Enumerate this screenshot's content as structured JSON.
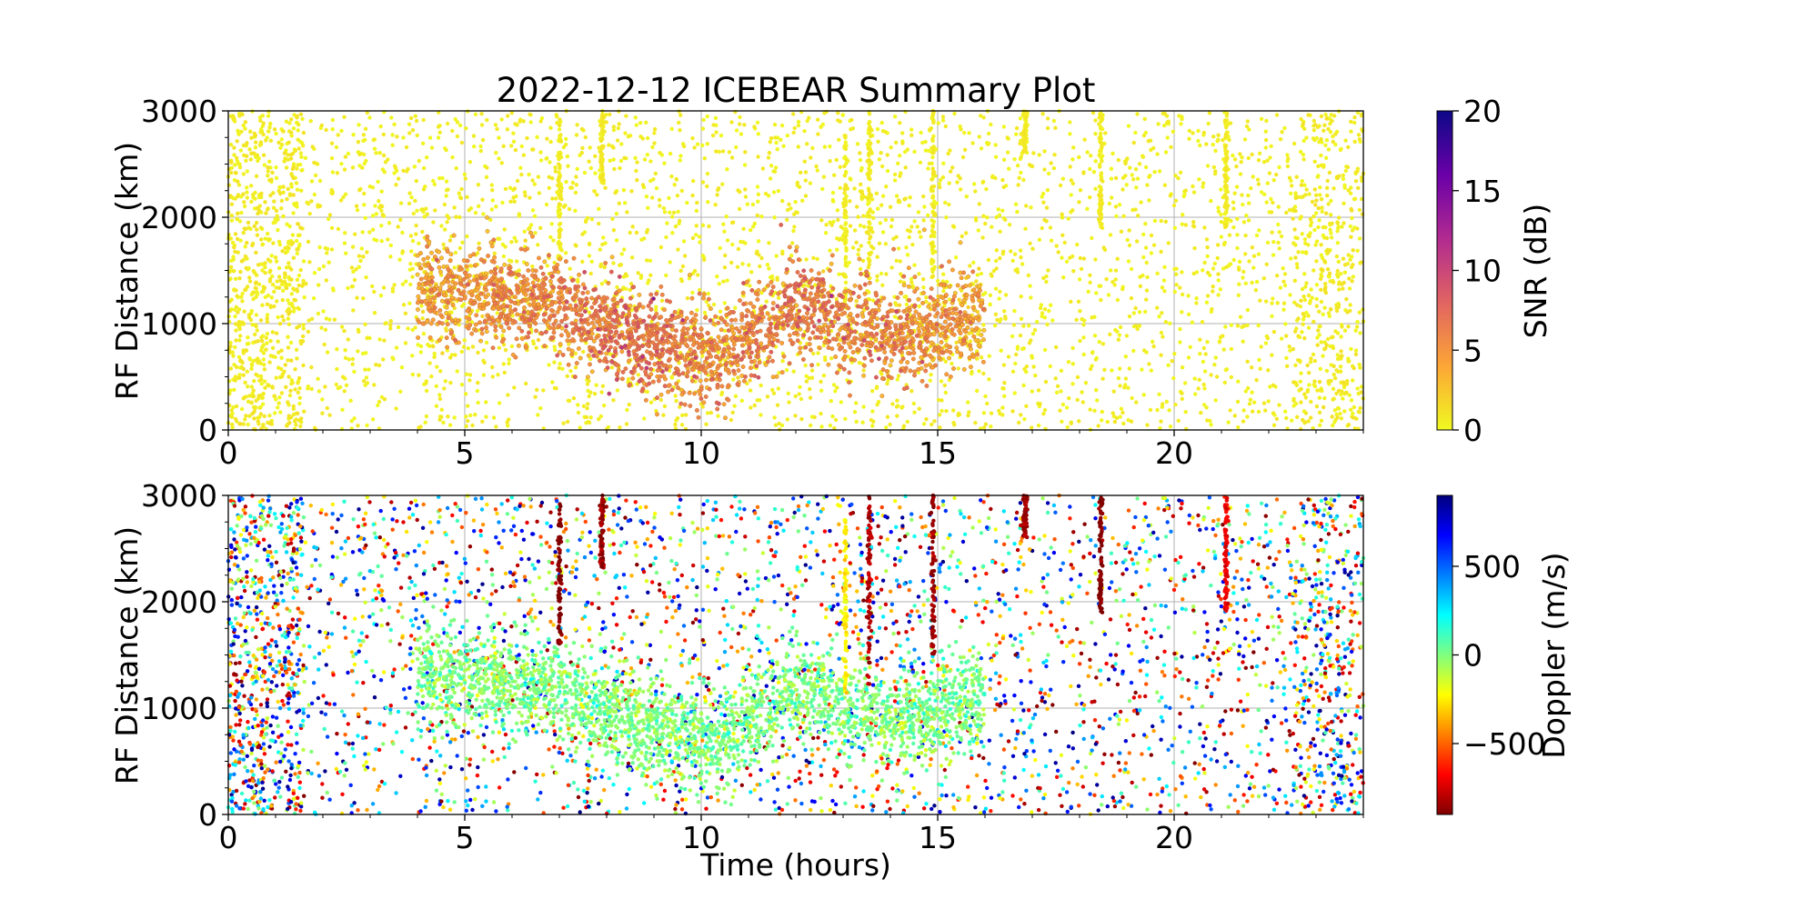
{
  "chart_data": [
    {
      "type": "scatter",
      "title": "2022-12-12 ICEBEAR Summary Plot",
      "xlabel": "",
      "ylabel": "RF Distance (km)",
      "xlim": [
        0,
        24
      ],
      "ylim": [
        0,
        3000
      ],
      "xticks": [
        0,
        5,
        10,
        15,
        20
      ],
      "yticks": [
        0,
        1000,
        2000,
        3000
      ],
      "grid": true,
      "colorbar": {
        "label": "SNR (dB)",
        "range": [
          0,
          20
        ],
        "ticks": [
          0,
          5,
          10,
          15,
          20
        ],
        "colormap": "plasma_r",
        "stops": [
          "#f0f921",
          "#fca636",
          "#e16462",
          "#b12a90",
          "#6a00a8",
          "#0d0887"
        ]
      },
      "features": {
        "background_noise_points": "uniform 0-24 h, 0-3000 km, ~0-1 dB",
        "echo_band": [
          {
            "time": 4.0,
            "distance": 1300,
            "snr": 3
          },
          {
            "time": 6.5,
            "distance": 1250,
            "snr": 5
          },
          {
            "time": 8.5,
            "distance": 850,
            "snr": 7
          },
          {
            "time": 10.5,
            "distance": 700,
            "snr": 5
          },
          {
            "time": 12.0,
            "distance": 1200,
            "snr": 6
          },
          {
            "time": 14.0,
            "distance": 850,
            "snr": 5
          },
          {
            "time": 16.0,
            "distance": 1100,
            "snr": 3
          }
        ],
        "vertical_streaks": [
          {
            "time": 7.0,
            "distance_range": [
              1600,
              3000
            ],
            "snr": 1,
            "doppler": -900
          },
          {
            "time": 7.9,
            "distance_range": [
              2300,
              3000
            ],
            "snr": 1,
            "doppler": -850
          },
          {
            "time": 13.05,
            "distance_range": [
              1100,
              2800
            ],
            "snr": 1,
            "doppler": -250
          },
          {
            "time": 13.55,
            "distance_range": [
              1200,
              3000
            ],
            "snr": 1,
            "doppler": -800
          },
          {
            "time": 14.9,
            "distance_range": [
              1500,
              3000
            ],
            "snr": 1,
            "doppler": -850
          },
          {
            "time": 16.85,
            "distance_range": [
              2600,
              3000
            ],
            "snr": 1,
            "doppler": -850
          },
          {
            "time": 18.45,
            "distance_range": [
              1900,
              3000
            ],
            "snr": 1,
            "doppler": -900
          },
          {
            "time": 21.1,
            "distance_range": [
              1900,
              3000
            ],
            "snr": 1,
            "doppler": -700
          }
        ]
      }
    },
    {
      "type": "scatter",
      "title": "",
      "xlabel": "Time (hours)",
      "ylabel": "RF Distance (km)",
      "xlim": [
        0,
        24
      ],
      "ylim": [
        0,
        3000
      ],
      "xticks": [
        0,
        5,
        10,
        15,
        20
      ],
      "yticks": [
        0,
        1000,
        2000,
        3000
      ],
      "grid": true,
      "colorbar": {
        "label": "Doppler (m/s)",
        "range": [
          -900,
          900
        ],
        "ticks": [
          -500,
          0,
          500
        ],
        "tick_labels": [
          "−500",
          "0",
          "500"
        ],
        "colormap": "jet_r",
        "stops": [
          "#7f0000",
          "#ff0000",
          "#ff7f00",
          "#ffff00",
          "#7fff7f",
          "#00ffff",
          "#007fff",
          "#0000ff",
          "#00007f"
        ]
      },
      "features": {
        "background_noise_points": "uniform 0-24 h, 0-3000 km, random Doppler",
        "echo_band_doppler": 0
      }
    }
  ]
}
